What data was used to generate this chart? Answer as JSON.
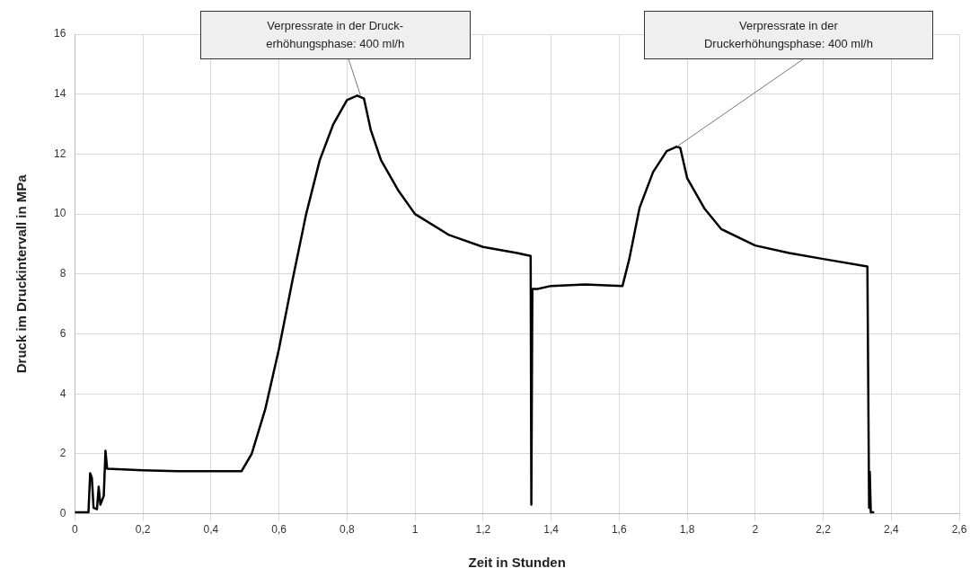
{
  "chart_data": {
    "type": "line",
    "xlabel": "Zeit in Stunden",
    "ylabel": "Druck im Druckintervall in MPa",
    "xlim": [
      0,
      2.6
    ],
    "xticks": [
      0,
      {
        "value": 0.2,
        "label": "0,2"
      },
      {
        "value": 0.4,
        "label": "0,4"
      },
      {
        "value": 0.6,
        "label": "0,6"
      },
      {
        "value": 0.8,
        "label": "0,8"
      },
      1,
      {
        "value": 1.2,
        "label": "1,2"
      },
      {
        "value": 1.4,
        "label": "1,4"
      },
      {
        "value": 1.6,
        "label": "1,6"
      },
      {
        "value": 1.8,
        "label": "1,8"
      },
      2,
      {
        "value": 2.2,
        "label": "2,2"
      },
      {
        "value": 2.4,
        "label": "2,4"
      },
      {
        "value": 2.6,
        "label": "2,6"
      }
    ],
    "ylim": [
      0,
      16
    ],
    "yticks": [
      0,
      2,
      4,
      6,
      8,
      10,
      12,
      14,
      16
    ],
    "grid": true,
    "legend": false,
    "marker": "none",
    "line_style": "solid",
    "x": [
      0,
      0.04,
      0.045,
      0.05,
      0.055,
      0.065,
      0.07,
      0.075,
      0.085,
      0.09,
      0.095,
      0.2,
      0.3,
      0.4,
      0.49,
      0.52,
      0.56,
      0.6,
      0.64,
      0.68,
      0.72,
      0.76,
      0.8,
      0.83,
      0.85,
      0.87,
      0.9,
      0.95,
      1.0,
      1.1,
      1.2,
      1.3,
      1.34,
      1.342,
      1.345,
      1.36,
      1.4,
      1.5,
      1.61,
      1.63,
      1.66,
      1.7,
      1.74,
      1.77,
      1.78,
      1.8,
      1.85,
      1.9,
      2.0,
      2.1,
      2.2,
      2.33,
      2.335,
      2.337,
      2.34,
      2.35
    ],
    "series": [
      {
        "color": "#000000",
        "values": [
          0.05,
          0.05,
          1.35,
          1.2,
          0.2,
          0.15,
          0.9,
          0.3,
          0.6,
          2.1,
          1.5,
          1.45,
          1.42,
          1.42,
          1.42,
          2.0,
          3.5,
          5.5,
          7.8,
          10.0,
          11.8,
          13.0,
          13.8,
          13.95,
          13.85,
          12.8,
          11.8,
          10.8,
          10.0,
          9.3,
          8.9,
          8.7,
          8.6,
          0.3,
          7.5,
          7.5,
          7.6,
          7.65,
          7.6,
          8.5,
          10.2,
          11.4,
          12.1,
          12.25,
          12.2,
          11.2,
          10.2,
          9.5,
          8.95,
          8.7,
          8.5,
          8.25,
          0.2,
          1.4,
          0.05,
          0.05
        ]
      }
    ],
    "annotations": [
      {
        "text": "Verpressrate in der Druck-\nerhöhungsphase: 400 ml/h",
        "x": 0.84,
        "y": 13.95
      },
      {
        "text": "Verpressrate in der\nDruckerhöhungsphase: 400 ml/h",
        "x": 1.77,
        "y": 12.25
      }
    ]
  }
}
